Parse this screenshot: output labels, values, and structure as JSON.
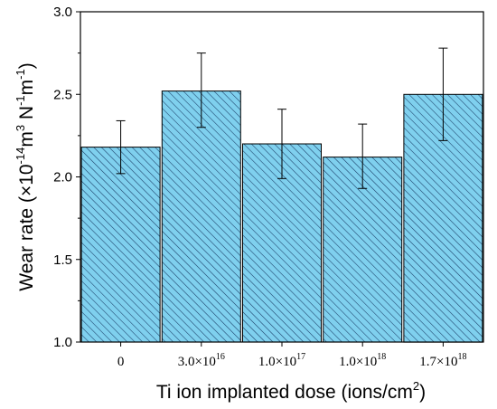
{
  "chart_data": {
    "type": "bar",
    "xlabel_parts": {
      "main": "Ti ion implanted dose (ions/cm",
      "sup": "2",
      "end": ")"
    },
    "ylabel_parts": [
      {
        "text": "Wear rate (×10",
        "sup": false
      },
      {
        "text": "-14",
        "sup": true
      },
      {
        "text": "m",
        "sup": false
      },
      {
        "text": "3",
        "sup": true
      },
      {
        "text": " N",
        "sup": false
      },
      {
        "text": "-1",
        "sup": true
      },
      {
        "text": "m",
        "sup": false
      },
      {
        "text": "-1",
        "sup": true
      },
      {
        "text": ")",
        "sup": false
      }
    ],
    "categories": [
      {
        "base": "0",
        "exp": ""
      },
      {
        "base": "3.0×10",
        "exp": "16"
      },
      {
        "base": "1.0×10",
        "exp": "17"
      },
      {
        "base": "1.0×10",
        "exp": "18"
      },
      {
        "base": "1.7×10",
        "exp": "18"
      }
    ],
    "series": [
      {
        "values": [
          2.18,
          2.52,
          2.2,
          2.12,
          2.5
        ],
        "err_low": [
          2.02,
          2.3,
          1.99,
          1.93,
          2.22
        ],
        "err_high": [
          2.34,
          2.75,
          2.41,
          2.32,
          2.78
        ]
      }
    ],
    "ylim": [
      1.0,
      3.0
    ],
    "yticks": [
      "1.0",
      "1.5",
      "2.0",
      "2.5",
      "3.0"
    ],
    "bar_color": "#7fd0ee",
    "hatch_color": "#1a3d66",
    "grid": false,
    "legend": "none"
  }
}
